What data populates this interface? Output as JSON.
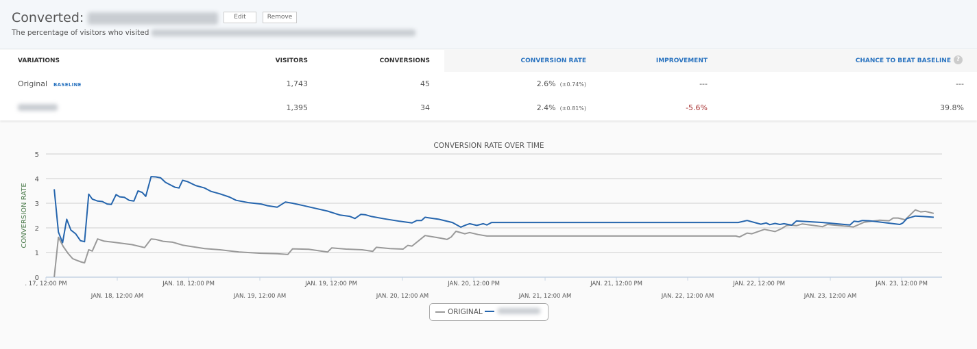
{
  "header": {
    "title": "Converted:",
    "edit_label": "Edit",
    "remove_label": "Remove",
    "description": "The percentage of visitors who visited"
  },
  "table": {
    "columns": [
      "VARIATIONS",
      "VISITORS",
      "CONVERSIONS",
      "CONVERSION RATE",
      "IMPROVEMENT",
      "CHANCE TO BEAT BASELINE"
    ],
    "help_icon": "?",
    "rows": [
      {
        "name": "Original",
        "badge": "BASELINE",
        "visitors": "1,743",
        "conversions": "45",
        "rate": "2.6%",
        "interval": "(±0.74%)",
        "improvement": "---",
        "chance": "---"
      },
      {
        "visitors": "1,395",
        "conversions": "34",
        "rate": "2.4%",
        "interval": "(±0.81%)",
        "improvement": "-5.6%",
        "chance": "39.8%"
      }
    ],
    "colors": {
      "accent": "#2b74c0",
      "negative": "#a83232"
    }
  },
  "chart_data": {
    "type": "line",
    "title": "CONVERSION RATE OVER TIME",
    "ylabel": "CONVERSION RATE",
    "xlabel": "",
    "x_units": "hours since Jan. 17, 12:00 PM",
    "xlim": [
      0,
      150.8
    ],
    "ylim": [
      0,
      5
    ],
    "yticks": [
      0,
      1,
      2,
      3,
      4,
      5
    ],
    "xticks": [
      {
        "h": 0,
        "label": ". 17, 12:00 PM"
      },
      {
        "h": 12,
        "label": "JAN. 18, 12:00 AM"
      },
      {
        "h": 24,
        "label": "JAN. 18, 12:00 PM"
      },
      {
        "h": 36,
        "label": "JAN. 19, 12:00 AM"
      },
      {
        "h": 48,
        "label": "JAN. 19, 12:00 PM"
      },
      {
        "h": 60,
        "label": "JAN. 20, 12:00 AM"
      },
      {
        "h": 72,
        "label": "JAN. 20, 12:00 PM"
      },
      {
        "h": 84,
        "label": "JAN. 21, 12:00 AM"
      },
      {
        "h": 96,
        "label": "JAN. 21, 12:00 PM"
      },
      {
        "h": 108,
        "label": "JAN. 22, 12:00 AM"
      },
      {
        "h": 120,
        "label": "JAN. 22, 12:00 PM"
      },
      {
        "h": 132,
        "label": "JAN. 23, 12:00 AM"
      },
      {
        "h": 144,
        "label": "JAN. 23, 12:00 PM"
      }
    ],
    "grid": true,
    "legend_position": "bottom-center",
    "series": [
      {
        "name": "ORIGINAL",
        "color": "#999999",
        "x": [
          1.4,
          2.1,
          2.9,
          3.7,
          4.5,
          5.2,
          6.0,
          6.5,
          7.2,
          7.8,
          8.7,
          9.8,
          11.3,
          14.5,
          16.6,
          17.7,
          18.5,
          19.8,
          21.3,
          23.0,
          26.7,
          29.3,
          32.5,
          36.2,
          38.9,
          40.7,
          41.5,
          44.2,
          47.4,
          48.1,
          50.5,
          53.2,
          55.0,
          55.6,
          57.9,
          60.1,
          60.9,
          61.6,
          63.8,
          66.5,
          67.5,
          68.2,
          69.0,
          70.5,
          71.3,
          72.7,
          74.2,
          116.1,
          116.7,
          118.0,
          118.8,
          120.9,
          122.7,
          123.8,
          124.6,
          125.3,
          126.3,
          127.3,
          130.7,
          131.5,
          135.9,
          137.7,
          140.3,
          141.9,
          142.6,
          143.4,
          144.6,
          146.3,
          147.2,
          148.0,
          149.4
        ],
        "y": [
          0,
          1.62,
          1.25,
          0.97,
          0.75,
          0.68,
          0.61,
          0.58,
          1.11,
          1.06,
          1.55,
          1.46,
          1.42,
          1.32,
          1.2,
          1.55,
          1.53,
          1.45,
          1.42,
          1.3,
          1.16,
          1.11,
          1.02,
          0.97,
          0.95,
          0.92,
          1.15,
          1.13,
          1.02,
          1.19,
          1.14,
          1.11,
          1.05,
          1.21,
          1.16,
          1.14,
          1.29,
          1.26,
          1.69,
          1.58,
          1.53,
          1.63,
          1.86,
          1.76,
          1.81,
          1.73,
          1.67,
          1.67,
          1.63,
          1.79,
          1.76,
          1.94,
          1.85,
          1.97,
          2.09,
          2.11,
          2.09,
          2.16,
          2.05,
          2.14,
          2.04,
          2.23,
          2.31,
          2.29,
          2.4,
          2.4,
          2.33,
          2.73,
          2.65,
          2.67,
          2.59
        ]
      },
      {
        "color": "#2565ad",
        "x": [
          1.4,
          2.1,
          2.8,
          3.5,
          4.2,
          5.0,
          5.8,
          6.5,
          7.2,
          7.8,
          8.7,
          9.5,
          10.3,
          11.0,
          11.8,
          12.4,
          13.2,
          14.0,
          14.8,
          15.5,
          16.2,
          16.8,
          17.7,
          18.5,
          19.3,
          20.1,
          20.9,
          21.7,
          22.4,
          23.0,
          23.8,
          25.2,
          26.7,
          27.8,
          29.3,
          30.9,
          32.0,
          34.2,
          36.2,
          37.3,
          38.9,
          40.3,
          41.5,
          43.2,
          45.2,
          47.4,
          49.5,
          51.1,
          52.0,
          53.0,
          53.8,
          54.8,
          56.9,
          59.5,
          61.6,
          62.4,
          63.2,
          63.8,
          66.1,
          68.4,
          69.8,
          70.7,
          71.3,
          72.5,
          73.6,
          74.2,
          75.0,
          116.5,
          118.0,
          120.3,
          121.2,
          121.8,
          122.7,
          123.5,
          124.2,
          125.5,
          126.3,
          130.7,
          135.3,
          136.0,
          136.7,
          137.4,
          138.5,
          143.7,
          144.2,
          144.9,
          146.3,
          147.7,
          149.4
        ],
        "y": [
          3.57,
          1.83,
          1.4,
          2.35,
          1.91,
          1.76,
          1.48,
          1.44,
          3.37,
          3.17,
          3.09,
          3.07,
          2.97,
          2.95,
          3.35,
          3.26,
          3.24,
          3.12,
          3.09,
          3.5,
          3.44,
          3.28,
          4.08,
          4.07,
          4.03,
          3.85,
          3.75,
          3.65,
          3.62,
          3.93,
          3.88,
          3.72,
          3.62,
          3.48,
          3.38,
          3.25,
          3.12,
          3.02,
          2.97,
          2.9,
          2.84,
          3.05,
          3.0,
          2.91,
          2.8,
          2.68,
          2.52,
          2.47,
          2.38,
          2.55,
          2.53,
          2.46,
          2.37,
          2.27,
          2.2,
          2.3,
          2.3,
          2.43,
          2.35,
          2.22,
          2.03,
          2.12,
          2.17,
          2.1,
          2.17,
          2.12,
          2.22,
          2.22,
          2.3,
          2.15,
          2.2,
          2.13,
          2.18,
          2.14,
          2.17,
          2.11,
          2.28,
          2.22,
          2.12,
          2.27,
          2.25,
          2.3,
          2.29,
          2.14,
          2.2,
          2.38,
          2.48,
          2.46,
          2.43
        ]
      }
    ]
  }
}
